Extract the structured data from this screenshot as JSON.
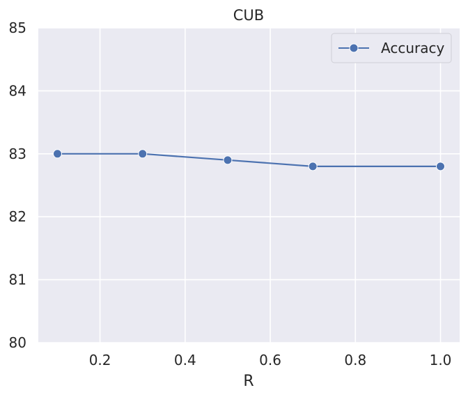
{
  "chart_data": {
    "type": "line",
    "title": "CUB",
    "xlabel": "R",
    "ylabel": "",
    "x": [
      0.1,
      0.3,
      0.5,
      0.7,
      1.0
    ],
    "series": [
      {
        "name": "Accuracy",
        "values": [
          83.0,
          83.0,
          82.9,
          82.8,
          82.8
        ]
      }
    ],
    "xlim": [
      0.055,
      1.045
    ],
    "ylim": [
      80,
      85
    ],
    "xticks": [
      0.2,
      0.4,
      0.6,
      0.8,
      1.0
    ],
    "xtick_labels": [
      "0.2",
      "0.4",
      "0.6",
      "0.8",
      "1.0"
    ],
    "yticks": [
      80,
      81,
      82,
      83,
      84,
      85
    ],
    "ytick_labels": [
      "80",
      "81",
      "82",
      "83",
      "84",
      "85"
    ],
    "grid": true,
    "legend_position": "top-right",
    "colors": {
      "series": "#4c72b0",
      "background": "#eaeaf2",
      "grid": "#ffffff"
    }
  }
}
